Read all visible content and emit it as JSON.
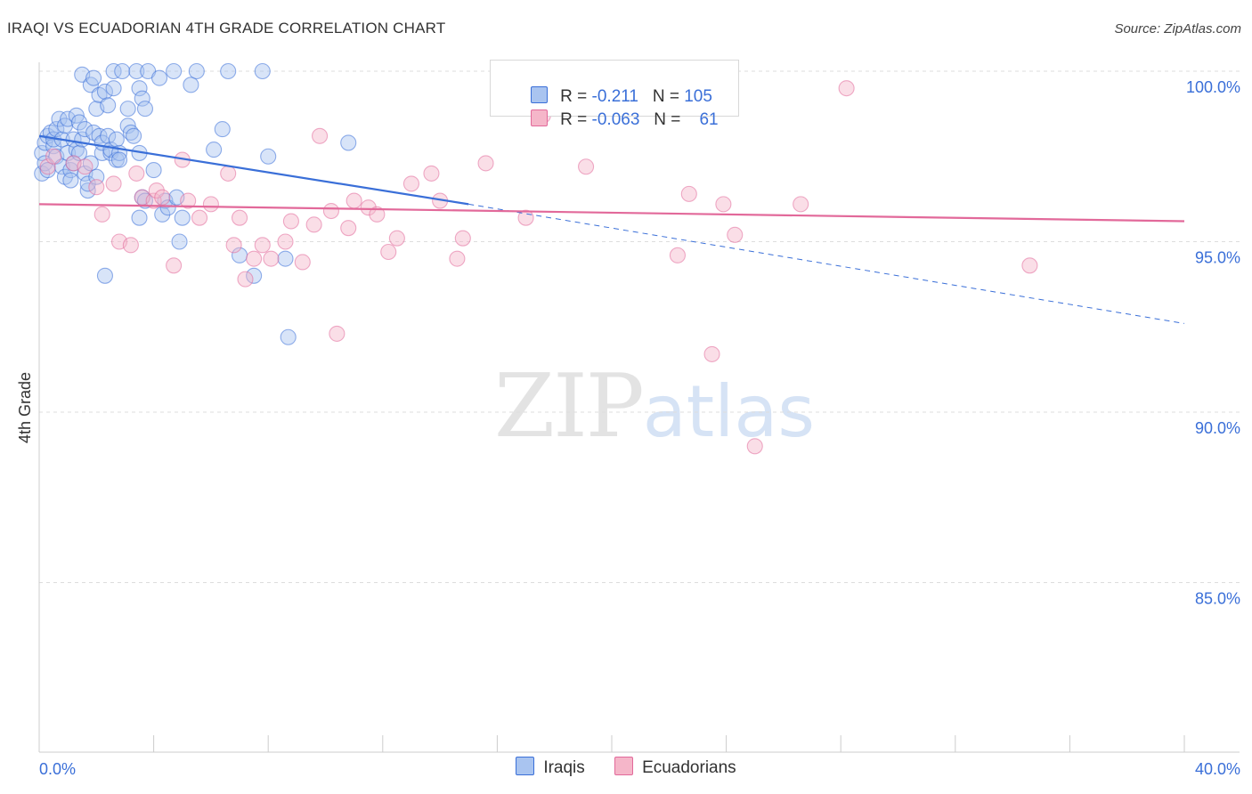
{
  "header": {
    "title": "IRAQI VS ECUADORIAN 4TH GRADE CORRELATION CHART",
    "source": "Source: ZipAtlas.com"
  },
  "watermark": {
    "zip": "ZIP",
    "atlas": "atlas"
  },
  "legend": {
    "rows": [
      {
        "r_label": "R =",
        "r_value": "-0.211",
        "n_label": "N =",
        "n_value": "105",
        "color": "#a9c4f0"
      },
      {
        "r_label": "R =",
        "r_value": "-0.063",
        "n_label": "N =",
        "n_value": "61",
        "color": "#f5b6c9"
      }
    ]
  },
  "bottom_legend": {
    "iraqis": "Iraqis",
    "ecuadorians": "Ecuadorians"
  },
  "chart_data": {
    "type": "scatter",
    "title": "IRAQI VS ECUADORIAN 4TH GRADE CORRELATION CHART",
    "ylabel": "4th Grade",
    "xlim": [
      0,
      40
    ],
    "ylim": [
      80.5,
      100.7
    ],
    "x_tick_labels": [
      "0.0%",
      "40.0%"
    ],
    "y_ticks": [
      100,
      95,
      90,
      85
    ],
    "y_tick_labels": [
      "100.0%",
      "95.0%",
      "90.0%",
      "85.0%"
    ],
    "grid": true,
    "legend_placement": "top-center",
    "colors": {
      "iraqis": "#3a6fd8",
      "iraqis_fill": "#a9c4f0",
      "ecuadorians": "#e2699a",
      "ecuadorians_fill": "#f5b6c9"
    },
    "series": [
      {
        "name": "Iraqis",
        "r": -0.211,
        "n": 105,
        "trend": {
          "x0": 0,
          "y0": 98.1,
          "x1": 15,
          "y1": 96.1,
          "dashed_to_x": 40,
          "dashed_to_y": 92.6
        },
        "points": [
          [
            0.1,
            97.0
          ],
          [
            0.1,
            97.6
          ],
          [
            0.2,
            97.9
          ],
          [
            0.2,
            97.3
          ],
          [
            0.3,
            98.1
          ],
          [
            0.3,
            97.1
          ],
          [
            0.4,
            98.2
          ],
          [
            0.5,
            97.8
          ],
          [
            0.5,
            98.0
          ],
          [
            0.6,
            98.3
          ],
          [
            0.6,
            97.5
          ],
          [
            0.7,
            98.6
          ],
          [
            0.8,
            98.0
          ],
          [
            0.8,
            97.2
          ],
          [
            0.9,
            98.4
          ],
          [
            0.9,
            96.9
          ],
          [
            1.0,
            98.6
          ],
          [
            1.0,
            97.6
          ],
          [
            1.1,
            97.1
          ],
          [
            1.1,
            96.8
          ],
          [
            1.2,
            98.0
          ],
          [
            1.2,
            97.3
          ],
          [
            1.3,
            98.7
          ],
          [
            1.3,
            97.7
          ],
          [
            1.4,
            97.6
          ],
          [
            1.4,
            98.5
          ],
          [
            1.5,
            99.9
          ],
          [
            1.5,
            98.0
          ],
          [
            1.6,
            97.0
          ],
          [
            1.6,
            98.3
          ],
          [
            1.7,
            96.5
          ],
          [
            1.7,
            96.7
          ],
          [
            1.8,
            99.6
          ],
          [
            1.8,
            97.3
          ],
          [
            1.9,
            99.8
          ],
          [
            1.9,
            98.2
          ],
          [
            2.0,
            96.9
          ],
          [
            2.0,
            98.9
          ],
          [
            2.1,
            99.3
          ],
          [
            2.1,
            98.1
          ],
          [
            2.2,
            97.6
          ],
          [
            2.2,
            97.9
          ],
          [
            2.3,
            99.4
          ],
          [
            2.3,
            94.0
          ],
          [
            2.4,
            99.0
          ],
          [
            2.4,
            98.1
          ],
          [
            2.5,
            97.6
          ],
          [
            2.5,
            97.7
          ],
          [
            2.6,
            99.5
          ],
          [
            2.6,
            100.0
          ],
          [
            2.7,
            98.0
          ],
          [
            2.7,
            97.4
          ],
          [
            2.8,
            97.6
          ],
          [
            2.8,
            97.4
          ],
          [
            2.9,
            100.0
          ],
          [
            3.1,
            98.9
          ],
          [
            3.1,
            98.4
          ],
          [
            3.2,
            98.2
          ],
          [
            3.3,
            98.1
          ],
          [
            3.4,
            100.0
          ],
          [
            3.5,
            99.5
          ],
          [
            3.5,
            97.6
          ],
          [
            3.5,
            95.7
          ],
          [
            3.6,
            99.2
          ],
          [
            3.6,
            96.3
          ],
          [
            3.7,
            98.9
          ],
          [
            3.7,
            96.2
          ],
          [
            3.8,
            100.0
          ],
          [
            4.0,
            97.1
          ],
          [
            4.2,
            99.8
          ],
          [
            4.3,
            95.8
          ],
          [
            4.4,
            96.2
          ],
          [
            4.5,
            96.0
          ],
          [
            4.7,
            100.0
          ],
          [
            4.8,
            96.3
          ],
          [
            4.9,
            95.0
          ],
          [
            5.0,
            95.7
          ],
          [
            5.3,
            99.6
          ],
          [
            5.5,
            100.0
          ],
          [
            6.1,
            97.7
          ],
          [
            6.4,
            98.3
          ],
          [
            6.6,
            100.0
          ],
          [
            7.0,
            94.6
          ],
          [
            7.5,
            94.0
          ],
          [
            7.8,
            100.0
          ],
          [
            8.0,
            97.5
          ],
          [
            8.6,
            94.5
          ],
          [
            8.7,
            92.2
          ],
          [
            10.8,
            97.9
          ]
        ]
      },
      {
        "name": "Ecuadorians",
        "r": -0.063,
        "n": 61,
        "trend": {
          "x0": 0,
          "y0": 96.1,
          "x1": 40,
          "y1": 95.6
        },
        "points": [
          [
            0.3,
            97.2
          ],
          [
            0.5,
            97.5
          ],
          [
            1.2,
            97.3
          ],
          [
            1.6,
            97.2
          ],
          [
            2.0,
            96.6
          ],
          [
            2.2,
            95.8
          ],
          [
            2.6,
            96.7
          ],
          [
            2.8,
            95.0
          ],
          [
            3.2,
            94.9
          ],
          [
            3.4,
            97.0
          ],
          [
            3.6,
            96.3
          ],
          [
            4.0,
            96.2
          ],
          [
            4.1,
            96.5
          ],
          [
            4.3,
            96.3
          ],
          [
            4.7,
            94.3
          ],
          [
            5.0,
            97.4
          ],
          [
            5.2,
            96.2
          ],
          [
            5.6,
            95.7
          ],
          [
            6.0,
            96.1
          ],
          [
            6.6,
            97.0
          ],
          [
            6.8,
            94.9
          ],
          [
            7.0,
            95.7
          ],
          [
            7.2,
            93.9
          ],
          [
            7.5,
            94.5
          ],
          [
            7.8,
            94.9
          ],
          [
            8.1,
            94.5
          ],
          [
            8.6,
            95.0
          ],
          [
            8.8,
            95.6
          ],
          [
            9.2,
            94.4
          ],
          [
            9.6,
            95.5
          ],
          [
            9.8,
            98.1
          ],
          [
            10.2,
            95.9
          ],
          [
            10.4,
            92.3
          ],
          [
            10.8,
            95.4
          ],
          [
            11.0,
            96.2
          ],
          [
            11.5,
            96.0
          ],
          [
            11.8,
            95.8
          ],
          [
            12.2,
            94.7
          ],
          [
            12.5,
            95.1
          ],
          [
            13.0,
            96.7
          ],
          [
            13.7,
            97.0
          ],
          [
            14.0,
            96.2
          ],
          [
            14.6,
            94.5
          ],
          [
            14.8,
            95.1
          ],
          [
            15.6,
            97.3
          ],
          [
            17.0,
            95.7
          ],
          [
            17.6,
            98.7
          ],
          [
            18.6,
            99.9
          ],
          [
            19.1,
            97.2
          ],
          [
            22.0,
            99.9
          ],
          [
            22.3,
            94.6
          ],
          [
            22.7,
            96.4
          ],
          [
            23.5,
            91.7
          ],
          [
            23.9,
            96.1
          ],
          [
            24.3,
            95.2
          ],
          [
            25.0,
            89.0
          ],
          [
            26.6,
            96.1
          ],
          [
            28.2,
            99.5
          ],
          [
            34.6,
            94.3
          ]
        ]
      }
    ]
  }
}
